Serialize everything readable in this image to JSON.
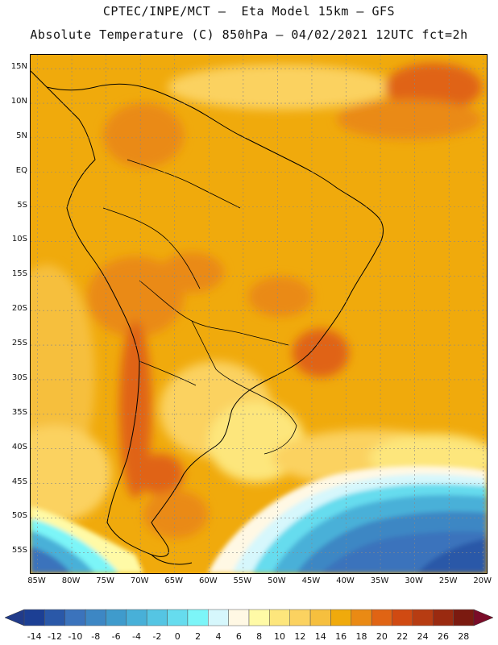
{
  "title_line1": "CPTEC/INPE/MCT —  Eta Model 15km — GFS",
  "title_line2": "Absolute Temperature (C) 850hPa — 04/02/2021 12UTC fct=2h",
  "map": {
    "lat_ticks": [
      "15N",
      "10N",
      "5N",
      "EQ",
      "5S",
      "10S",
      "15S",
      "20S",
      "25S",
      "30S",
      "35S",
      "40S",
      "45S",
      "50S",
      "55S"
    ],
    "lon_ticks": [
      "85W",
      "80W",
      "75W",
      "70W",
      "65W",
      "60W",
      "55W",
      "50W",
      "45W",
      "40W",
      "35W",
      "30W",
      "25W",
      "20W"
    ],
    "lat_range": [
      17,
      -58
    ],
    "lon_range": [
      -86,
      -19.5
    ]
  },
  "colorbar": {
    "labels": [
      "-14",
      "-12",
      "-10",
      "-8",
      "-6",
      "-4",
      "-2",
      "0",
      "2",
      "4",
      "6",
      "8",
      "10",
      "12",
      "14",
      "16",
      "18",
      "20",
      "22",
      "24",
      "26",
      "28"
    ],
    "colors": [
      "#1c3f94",
      "#2a58a8",
      "#3b73bc",
      "#3d87c4",
      "#3f9bcc",
      "#48b0d8",
      "#55c5e3",
      "#66dcee",
      "#7cf5f8",
      "#d6f7fc",
      "#fff8e4",
      "#fffaa6",
      "#fde67c",
      "#fbd260",
      "#f6bf3e",
      "#f0aa0c",
      "#ea8a14",
      "#e06414",
      "#d04a12",
      "#b73c12",
      "#9a2a10",
      "#7b1a10"
    ],
    "left_color": "#213b8a",
    "right_color": "#7a0c28"
  }
}
